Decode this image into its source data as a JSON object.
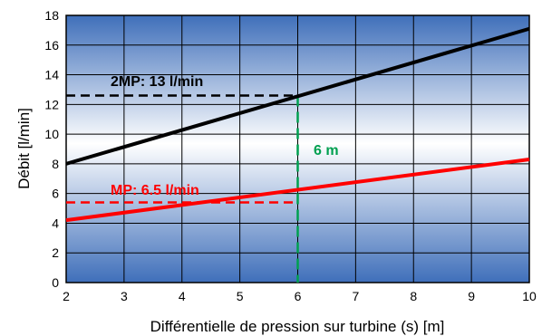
{
  "chart_data": {
    "type": "line",
    "xlabel": "Différentielle de pression sur turbine (s) [m]",
    "ylabel": "Débit [l/min]",
    "xlim": [
      2,
      10
    ],
    "ylim": [
      0,
      18
    ],
    "x_ticks": [
      "2",
      "3",
      "4",
      "5",
      "6",
      "7",
      "8",
      "9",
      "10"
    ],
    "y_ticks": [
      "0",
      "2",
      "4",
      "6",
      "8",
      "10",
      "12",
      "14",
      "16",
      "18"
    ],
    "grid": true,
    "series": [
      {
        "name": "",
        "color": "#000000",
        "x": [
          2,
          10
        ],
        "values": [
          8.0,
          17.1
        ]
      },
      {
        "name": "",
        "color": "#ff0000",
        "x": [
          2,
          10
        ],
        "values": [
          4.2,
          8.3
        ]
      }
    ],
    "annotations": [
      {
        "text": "2MP: 13 l/min",
        "color": "#000000",
        "ref_y": 12.6,
        "ref_x": 6
      },
      {
        "text": "MP: 6.5 l/min",
        "color": "#ff0000",
        "ref_y": 5.4,
        "ref_x": 6
      },
      {
        "text": "6 m",
        "color": "#00a050",
        "ref_x": 6
      }
    ]
  }
}
